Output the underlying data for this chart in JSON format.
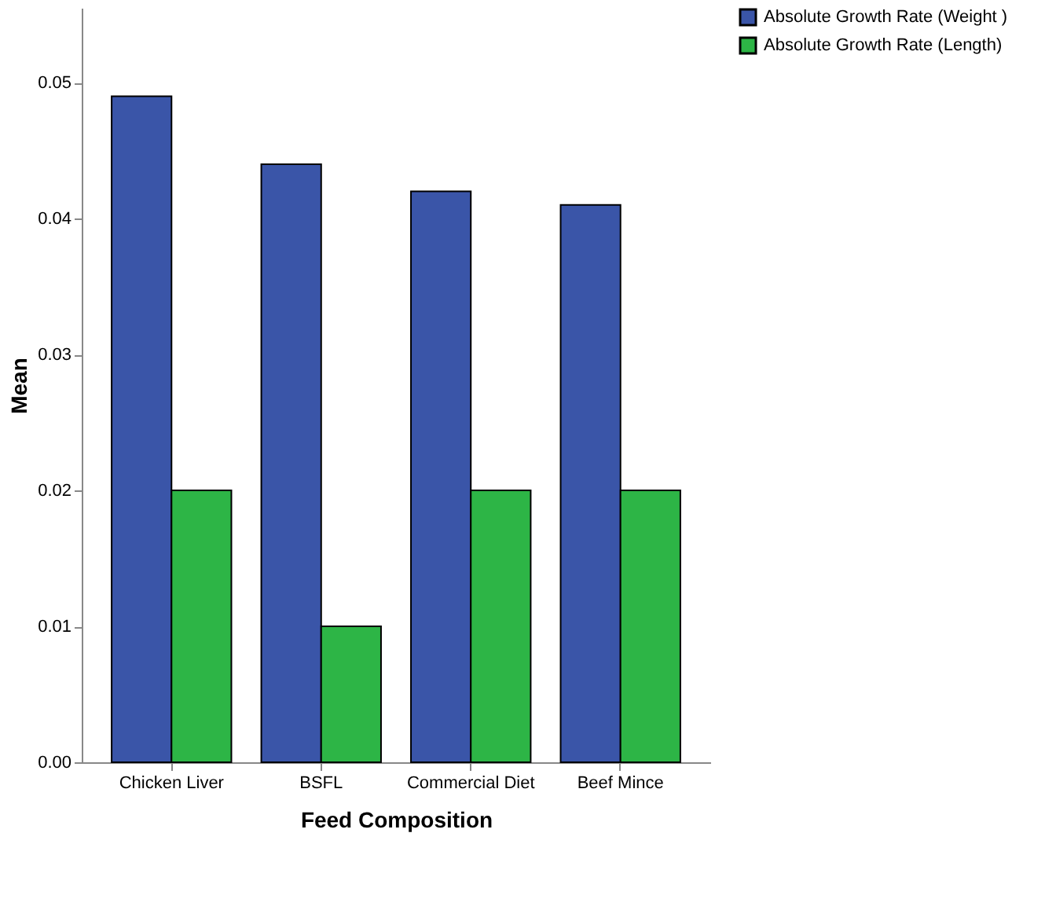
{
  "chart_data": {
    "type": "bar",
    "xlabel": "Feed Composition",
    "ylabel": "Mean",
    "categories": [
      "Chicken Liver",
      "BSFL",
      "Commercial Diet",
      "Beef Mince"
    ],
    "series": [
      {
        "name": "Absolute Growth Rate (Weight )",
        "color": "#3a55a8",
        "values": [
          0.049,
          0.044,
          0.042,
          0.041
        ]
      },
      {
        "name": "Absolute Growth Rate (Length)",
        "color": "#2db546",
        "values": [
          0.02,
          0.01,
          0.02,
          0.02
        ]
      }
    ],
    "ylim": [
      0,
      0.0555
    ],
    "yticks": [
      {
        "value": 0,
        "label": "0.00"
      },
      {
        "value": 0.01,
        "label": "0.01"
      },
      {
        "value": 0.02,
        "label": "0.02"
      },
      {
        "value": 0.03,
        "label": "0.03"
      },
      {
        "value": 0.04,
        "label": "0.04"
      },
      {
        "value": 0.05,
        "label": "0.05"
      }
    ],
    "grid": false,
    "legend": "top right"
  }
}
